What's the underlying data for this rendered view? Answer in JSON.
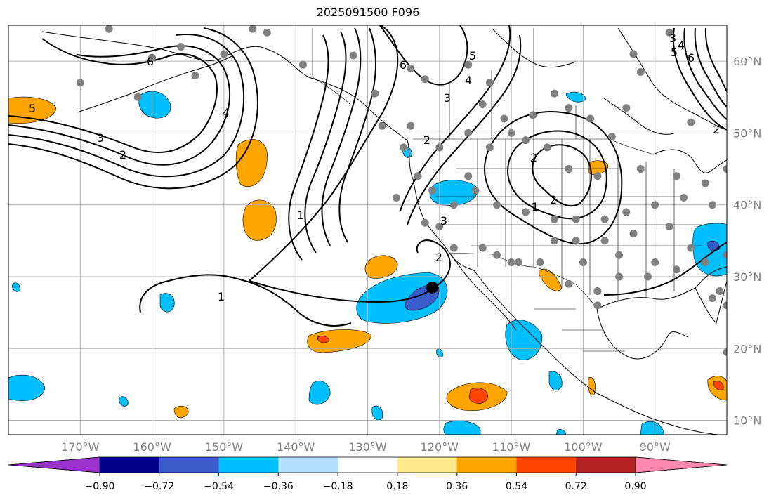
{
  "title": "2025091500 F096",
  "map": {
    "lon_range": [
      -180,
      -80
    ],
    "lat_range": [
      8,
      65
    ],
    "gridlines": true,
    "lat_labels": [
      "60°N",
      "50°N",
      "40°N",
      "30°N",
      "20°N",
      "10°N"
    ],
    "lat_values": [
      60,
      50,
      40,
      30,
      20,
      10
    ],
    "lon_labels": [
      "170°W",
      "160°W",
      "150°W",
      "140°W",
      "130°W",
      "120°W",
      "110°W",
      "100°W",
      "90°W"
    ],
    "lon_values": [
      -170,
      -160,
      -150,
      -140,
      -130,
      -120,
      -110,
      -100,
      -90
    ],
    "contour_labels": [
      "6",
      "5",
      "4",
      "3",
      "2",
      "1",
      "1",
      "2",
      "2",
      "3",
      "4",
      "5",
      "6",
      "1",
      "2",
      "3",
      "2",
      "6",
      "5",
      "4",
      "3",
      "2"
    ],
    "marker": {
      "lon": -121,
      "lat": 28.5,
      "label": "storm-center"
    },
    "station_color": "#808080"
  },
  "colorbar": {
    "ticks": [
      "−0.90",
      "−0.72",
      "−0.54",
      "−0.36",
      "−0.18",
      "0.18",
      "0.36",
      "0.54",
      "0.72",
      "0.90"
    ],
    "colors": [
      "#9932cc",
      "#00008b",
      "#3a5bcc",
      "#00bfff",
      "#b0e0ff",
      "#ffffff",
      "#ffe98a",
      "#ffa500",
      "#ff4500",
      "#b22222",
      "#ff87b0"
    ]
  }
}
